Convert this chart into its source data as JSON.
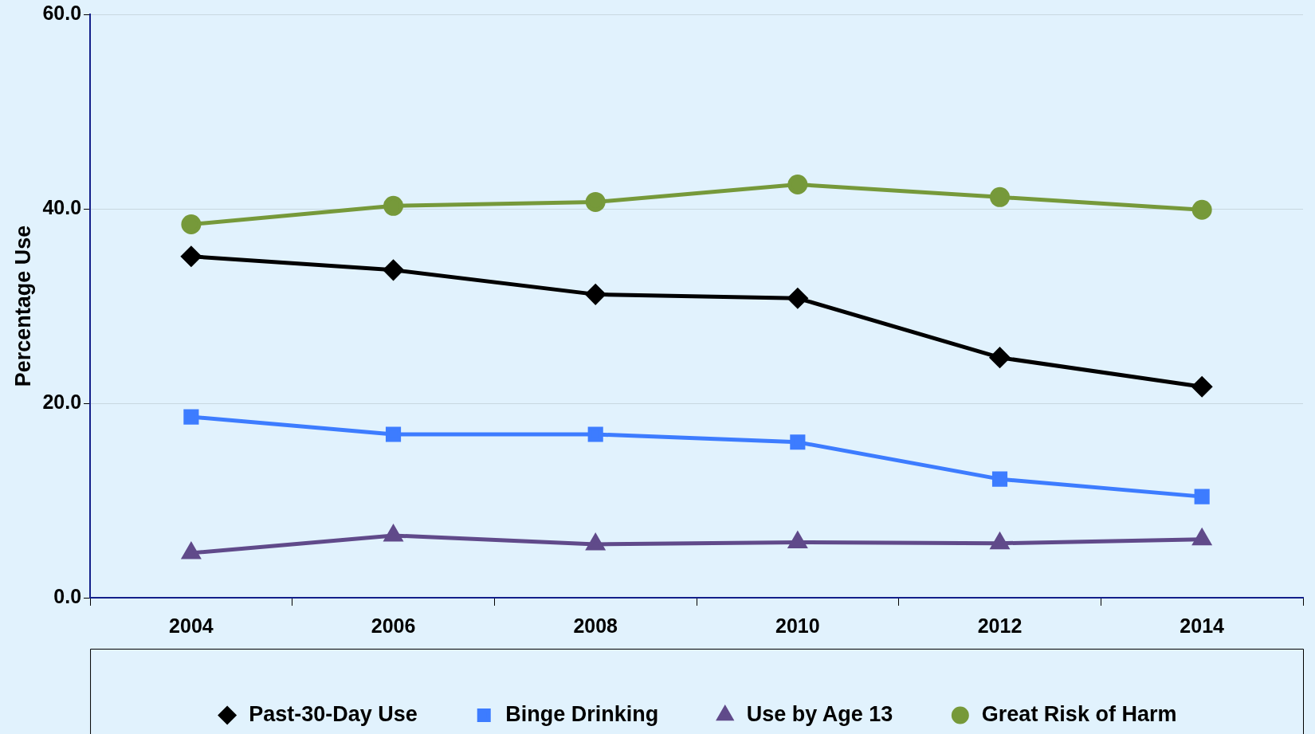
{
  "chart_data": {
    "type": "line",
    "ylabel": "Percentage Use",
    "categories": [
      "2004",
      "2006",
      "2008",
      "2010",
      "2012",
      "2014"
    ],
    "series": [
      {
        "name": "Past-30-Day Use",
        "color": "#000000",
        "marker": "diamond",
        "values": [
          35.1,
          33.7,
          31.2,
          30.8,
          24.7,
          21.7
        ]
      },
      {
        "name": "Binge Drinking",
        "color": "#3d7cff",
        "marker": "square",
        "values": [
          18.6,
          16.8,
          16.8,
          16.0,
          12.2,
          10.4
        ]
      },
      {
        "name": "Use by Age 13",
        "color": "#604a8a",
        "marker": "triangle",
        "values": [
          4.6,
          6.4,
          5.5,
          5.7,
          5.6,
          6.0
        ]
      },
      {
        "name": "Great Risk of Harm",
        "color": "#76993a",
        "marker": "circle",
        "values": [
          38.4,
          40.3,
          40.7,
          42.5,
          41.2,
          39.9
        ]
      }
    ],
    "ylim": [
      0,
      60
    ],
    "yticks": [
      {
        "value": 0,
        "label": "0.0"
      },
      {
        "value": 20,
        "label": "20.0"
      },
      {
        "value": 40,
        "label": "40.0"
      },
      {
        "value": 60,
        "label": "60.0"
      }
    ],
    "grid": "y",
    "legend": "bottom",
    "line_style": "solid"
  }
}
